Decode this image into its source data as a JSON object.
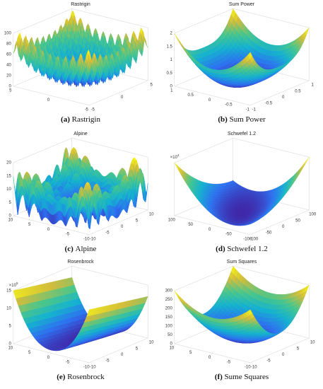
{
  "panels": [
    {
      "title": "Rastrigin",
      "label": "(a)",
      "caption": "Rastrigin",
      "zticks": [
        0,
        20,
        40,
        60,
        80,
        100
      ],
      "xticks": [
        5,
        0,
        -5
      ],
      "yticks": [
        -5,
        0,
        5
      ]
    },
    {
      "title": "Sum Power",
      "label": "(b)",
      "caption": "Sum Power",
      "zticks": [
        0,
        0.5,
        1,
        1.5,
        2
      ],
      "xticks": [
        1,
        0.5,
        0,
        -0.5,
        -1
      ],
      "yticks": [
        -1,
        -0.5,
        0,
        0.5,
        1
      ]
    },
    {
      "title": "Alpine",
      "label": "(c)",
      "caption": "Alpine",
      "zticks": [
        0,
        5,
        10,
        15,
        20
      ],
      "xticks": [
        10,
        5,
        0,
        -5,
        -10
      ],
      "yticks": [
        -10,
        -5,
        0,
        5,
        10
      ]
    },
    {
      "title": "Schwefel 1.2",
      "label": "(d)",
      "caption": "Schwefel 1.2",
      "z_multiplier": "×10",
      "z_exponent": 4,
      "xticks": [
        100,
        50,
        0,
        -50,
        -100
      ],
      "yticks": [
        -100,
        -50,
        0,
        50,
        100
      ]
    },
    {
      "title": "Rosenbrock",
      "label": "(e)",
      "caption": "Rosenbrock",
      "z_multiplier": "×10",
      "z_exponent": 5,
      "zticks": [
        0,
        5,
        10,
        15
      ],
      "xticks": [
        10,
        5,
        0,
        -5,
        -10
      ],
      "yticks": [
        -10,
        -5,
        0,
        5,
        10
      ]
    },
    {
      "title": "Sum Squares",
      "label": "(f)",
      "caption": "Sume Squares",
      "zticks": [
        0,
        50,
        100,
        150,
        200,
        250,
        300
      ],
      "xticks": [
        10,
        5,
        0,
        -5,
        -10
      ],
      "yticks": [
        -10,
        -5,
        0,
        5,
        10
      ]
    }
  ]
}
